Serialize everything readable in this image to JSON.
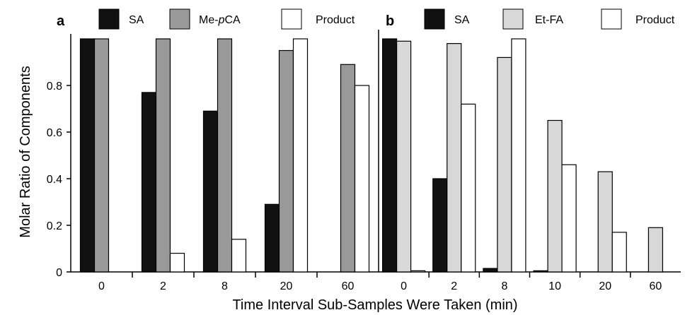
{
  "chart_data": {
    "type": "bar",
    "ylabel": "Molar Ratio of Components",
    "xlabel": "Time Interval Sub-Samples Were Taken (min)",
    "ylim": [
      0,
      1.0
    ],
    "yticks": [
      "0",
      "0.2",
      "0.4",
      "0.6",
      "0.8"
    ],
    "grid": false,
    "legend_position": "top",
    "panels": [
      {
        "label": "a",
        "categories": [
          "0",
          "2",
          "8",
          "20",
          "60"
        ],
        "series": [
          {
            "name": "SA",
            "color": "#111111",
            "values": [
              1.0,
              0.77,
              0.69,
              0.29,
              0.0
            ]
          },
          {
            "name": "Me-pCA",
            "name_prefix": "Me-",
            "name_italic": "p",
            "name_suffix": "CA",
            "color": "#999999",
            "values": [
              1.0,
              1.0,
              1.0,
              0.95,
              0.89
            ]
          },
          {
            "name": "Product",
            "color": "#ffffff",
            "values": [
              0.0,
              0.08,
              0.14,
              1.0,
              0.8
            ]
          }
        ]
      },
      {
        "label": "b",
        "categories": [
          "0",
          "2",
          "8",
          "10",
          "20",
          "60"
        ],
        "series": [
          {
            "name": "SA",
            "color": "#111111",
            "values": [
              1.0,
              0.4,
              0.015,
              0.005,
              0.0,
              0.0
            ]
          },
          {
            "name": "Et-FA",
            "color": "#d8d8d8",
            "values": [
              0.99,
              0.98,
              0.92,
              0.65,
              0.43,
              0.19
            ]
          },
          {
            "name": "Product",
            "color": "#ffffff",
            "values": [
              0.005,
              0.72,
              1.0,
              0.46,
              0.17,
              0.0
            ]
          }
        ]
      }
    ]
  }
}
